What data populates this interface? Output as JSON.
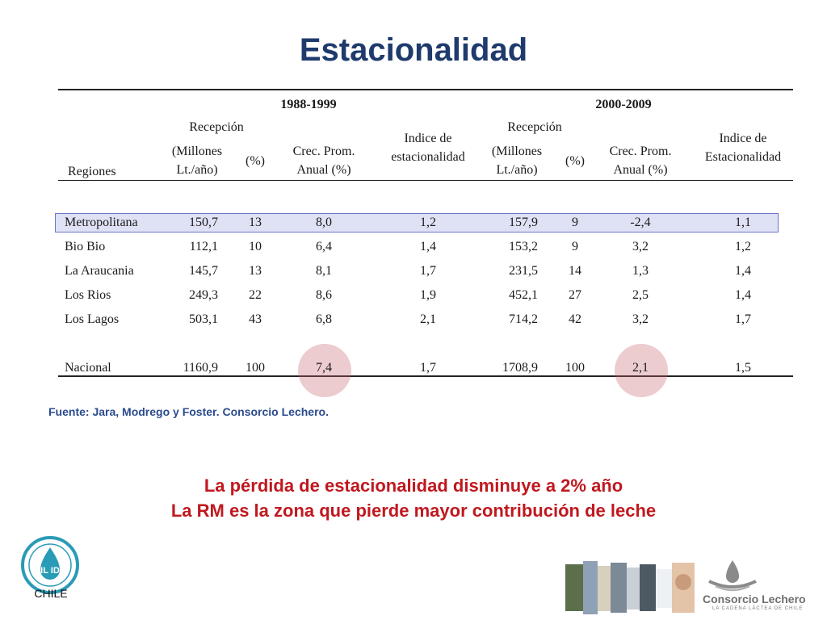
{
  "slide": {
    "title": "Estacionalidad",
    "source": "Fuente: Jara, Modrego y Foster. Consorcio Lechero.",
    "conclusion_lines": [
      "La pérdida de estacionalidad disminuye a 2% año",
      "La RM es la zona que pierde mayor contribución de leche"
    ]
  },
  "table": {
    "periods": [
      "1988-1999",
      "2000-2009"
    ],
    "header": {
      "regions": "Regiones",
      "reception": "Recepción",
      "units": [
        "(Millones",
        "Lt./año)"
      ],
      "pct": "(%)",
      "growth": [
        "Crec. Prom.",
        "Anual (%)"
      ],
      "index_p1": [
        "Indice de",
        "estacionalidad"
      ],
      "index_p2": [
        "Indice de",
        "Estacionalidad"
      ]
    },
    "rows": [
      {
        "region": "Metropolitana",
        "cells": [
          "150,7",
          "13",
          "8,0",
          "1,2",
          "157,9",
          "9",
          "-2,4",
          "1,1"
        ]
      },
      {
        "region": "Bio Bio",
        "cells": [
          "112,1",
          "10",
          "6,4",
          "1,4",
          "153,2",
          "9",
          "3,2",
          "1,2"
        ]
      },
      {
        "region": "La Araucania",
        "cells": [
          "145,7",
          "13",
          "8,1",
          "1,7",
          "231,5",
          "14",
          "1,3",
          "1,4"
        ]
      },
      {
        "region": "Los Rios",
        "cells": [
          "249,3",
          "22",
          "8,6",
          "1,9",
          "452,1",
          "27",
          "2,5",
          "1,4"
        ]
      },
      {
        "region": "Los Lagos",
        "cells": [
          "503,1",
          "43",
          "6,8",
          "2,1",
          "714,2",
          "42",
          "3,2",
          "1,7"
        ]
      },
      {
        "region": "Nacional",
        "cells": [
          "1160,9",
          "100",
          "7,4",
          "1,7",
          "1708,9",
          "100",
          "2,1",
          "1,5"
        ]
      }
    ],
    "highlighted_row": "Metropolitana"
  },
  "footer": {
    "logo_left_label": "CHILE",
    "logo_left_text": "FIL IDF",
    "brand": "Consorcio Lechero",
    "tagline": "LA CADENA LÁCTEA DE CHILE"
  },
  "colors": {
    "title": "#1f3a6d",
    "source": "#2a4b8d",
    "conclusion": "#c0181f",
    "row_highlight": "#dfe1f4",
    "circle": "#c4606a"
  }
}
